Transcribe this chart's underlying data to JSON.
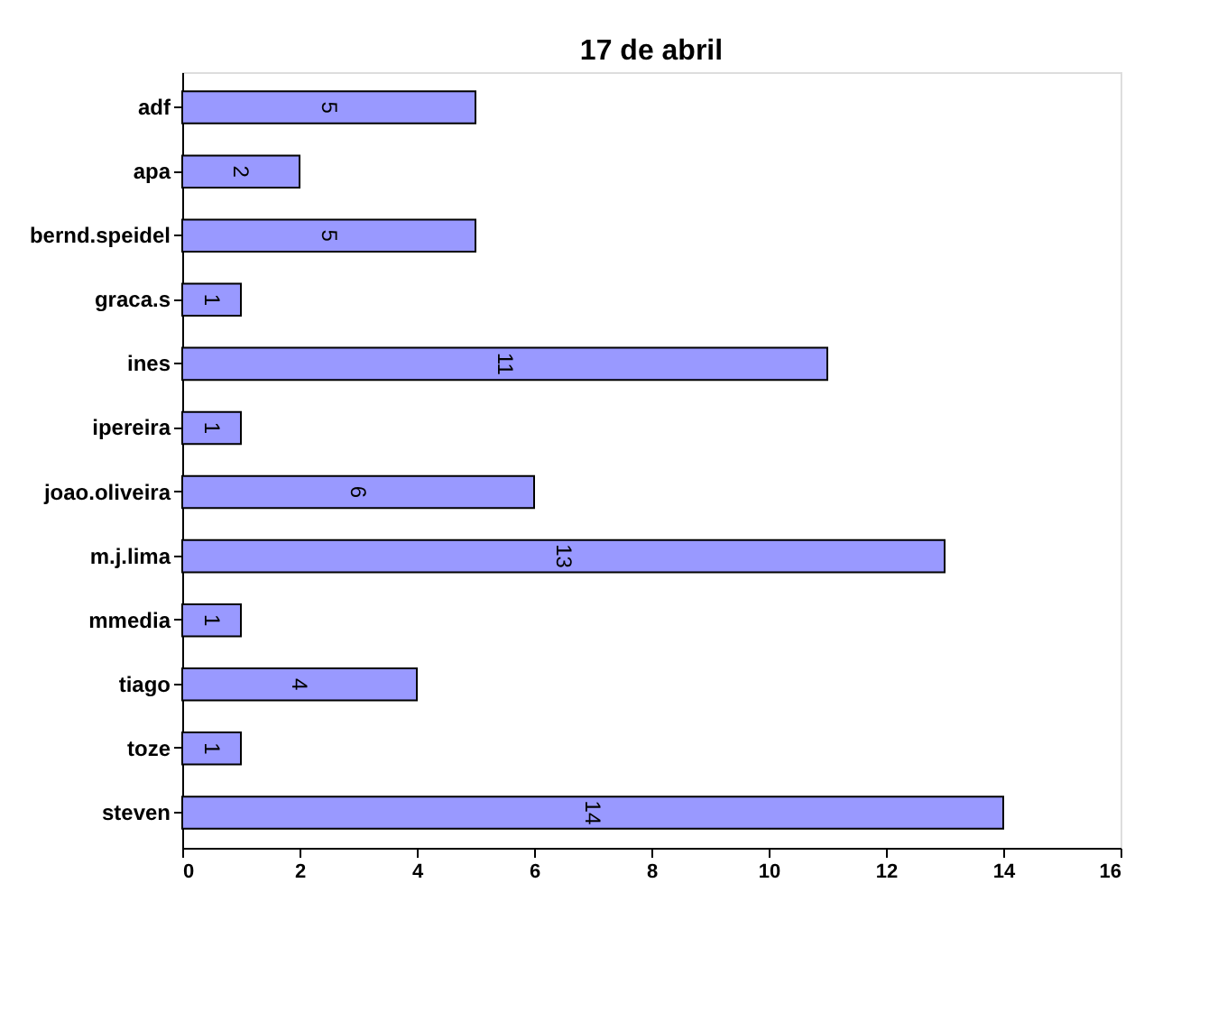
{
  "chart_data": {
    "type": "bar",
    "orientation": "horizontal",
    "title": "17 de abril",
    "categories": [
      "adf",
      "apa",
      "bernd.speidel",
      "graca.s",
      "ines",
      "ipereira",
      "joao.oliveira",
      "m.j.lima",
      "mmedia",
      "tiago",
      "toze",
      "steven"
    ],
    "values": [
      5,
      2,
      5,
      1,
      11,
      1,
      6,
      13,
      1,
      4,
      1,
      14
    ],
    "color": "#9999ff",
    "xlim": [
      0,
      16
    ],
    "xticks": [
      0,
      2,
      4,
      6,
      8,
      10,
      12,
      14,
      16
    ],
    "grid": false,
    "data_labels": true
  }
}
